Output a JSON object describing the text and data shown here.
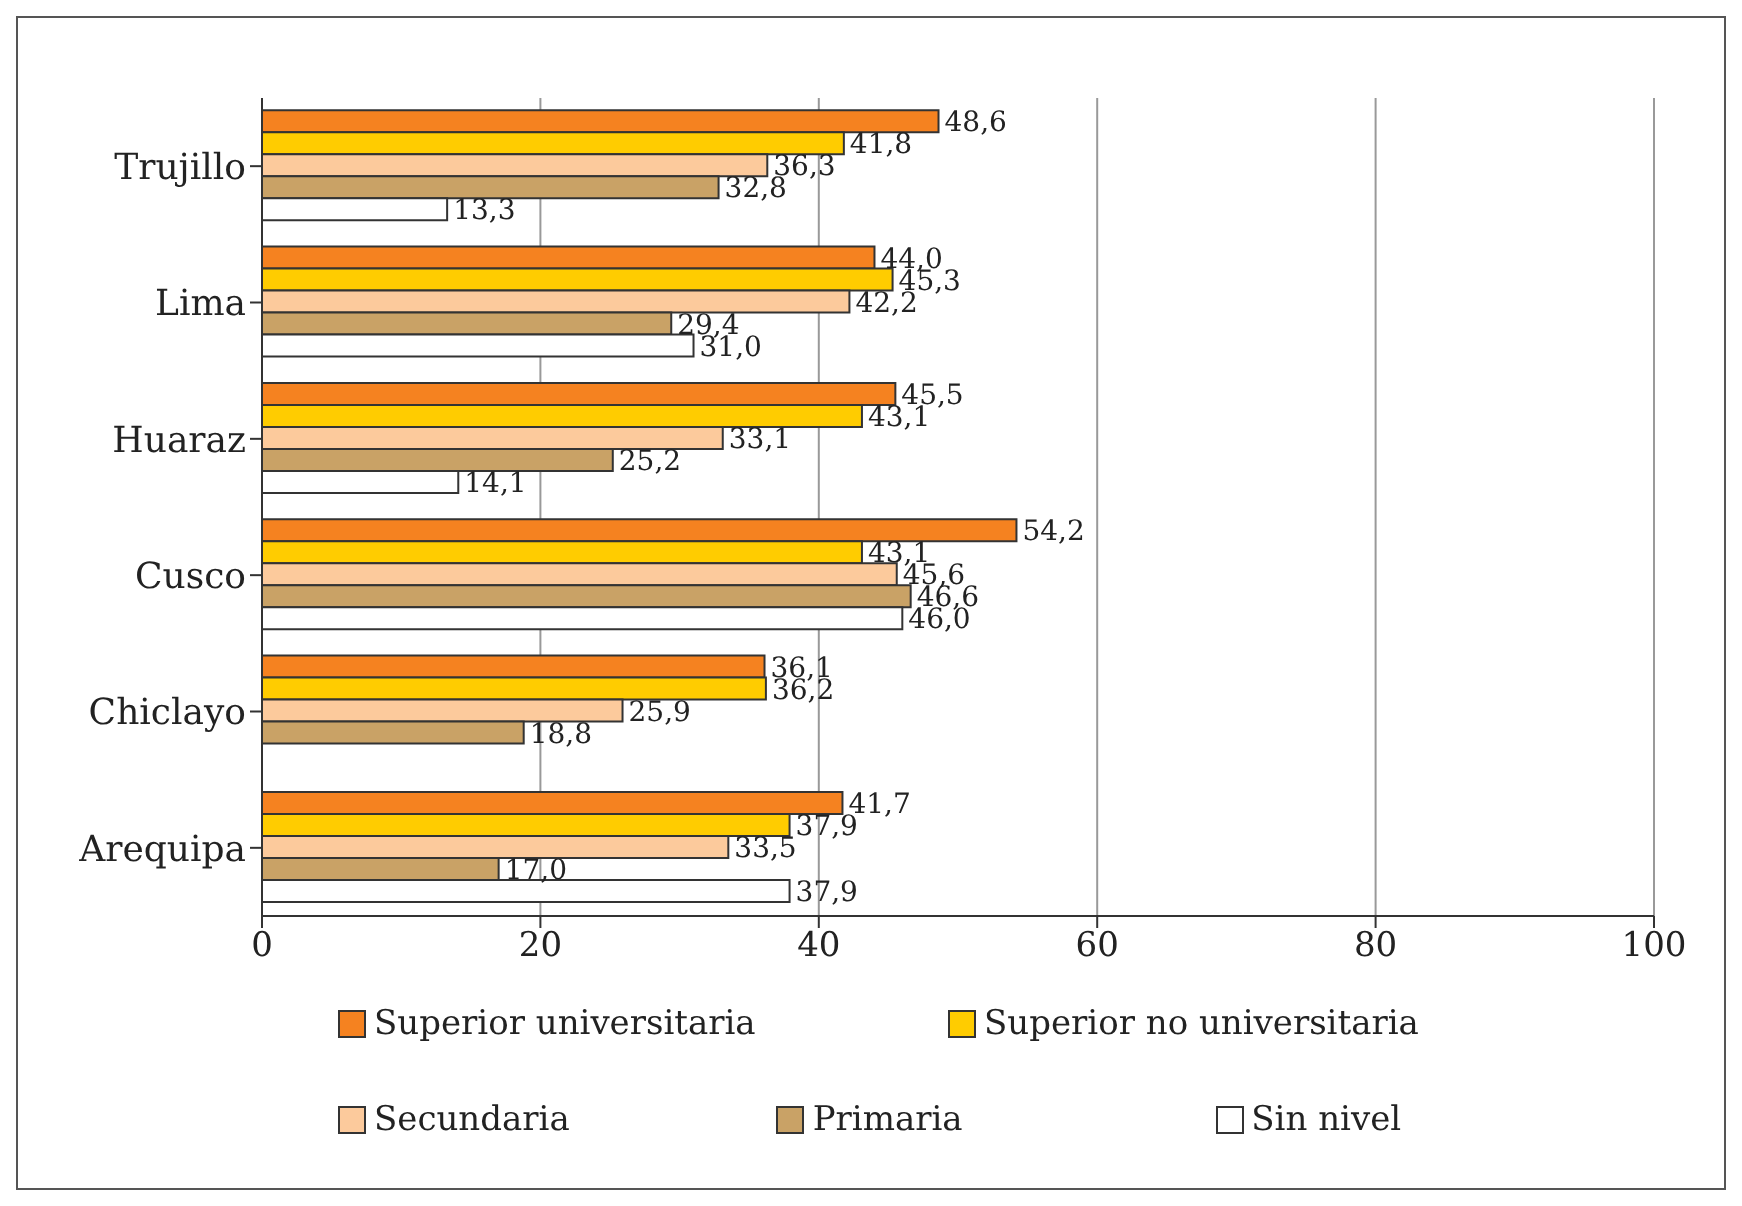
{
  "chart_data": {
    "type": "bar",
    "orientation": "horizontal",
    "categories": [
      "Trujillo",
      "Lima",
      "Huaraz",
      "Cusco",
      "Chiclayo",
      "Arequipa"
    ],
    "series": [
      {
        "name": "Superior universitaria",
        "color": "#f58220",
        "values": [
          48.6,
          44.0,
          45.5,
          54.2,
          36.1,
          41.7
        ],
        "value_labels": [
          "48,6",
          "44,0",
          "45,5",
          "54,2",
          "36,1",
          "41,7"
        ]
      },
      {
        "name": "Superior no universitaria",
        "color": "#ffcc00",
        "values": [
          41.8,
          45.3,
          43.1,
          43.1,
          36.2,
          37.9
        ],
        "value_labels": [
          "41,8",
          "45,3",
          "43,1",
          "43,1",
          "36,2",
          "37,9"
        ]
      },
      {
        "name": "Secundaria",
        "color": "#fcca9c",
        "values": [
          36.3,
          42.2,
          33.1,
          45.6,
          25.9,
          33.5
        ],
        "value_labels": [
          "36,3",
          "42,2",
          "33,1",
          "45,6",
          "25,9",
          "33,5"
        ]
      },
      {
        "name": "Primaria",
        "color": "#c9a266",
        "values": [
          32.8,
          29.4,
          25.2,
          46.6,
          18.8,
          17.0
        ],
        "value_labels": [
          "32,8",
          "29,4",
          "25,2",
          "46,6",
          "18,8",
          "17,0"
        ]
      },
      {
        "name": "Sin nivel",
        "color": "#ffffff",
        "values": [
          13.3,
          31.0,
          14.1,
          46.0,
          null,
          37.9
        ],
        "value_labels": [
          "13,3",
          "31,0",
          "14,1",
          "46,0",
          null,
          "37,9"
        ]
      }
    ],
    "xlim": [
      0,
      100
    ],
    "xticks": [
      0,
      20,
      40,
      60,
      80,
      100
    ],
    "grid": "x",
    "legend": "bottom"
  }
}
